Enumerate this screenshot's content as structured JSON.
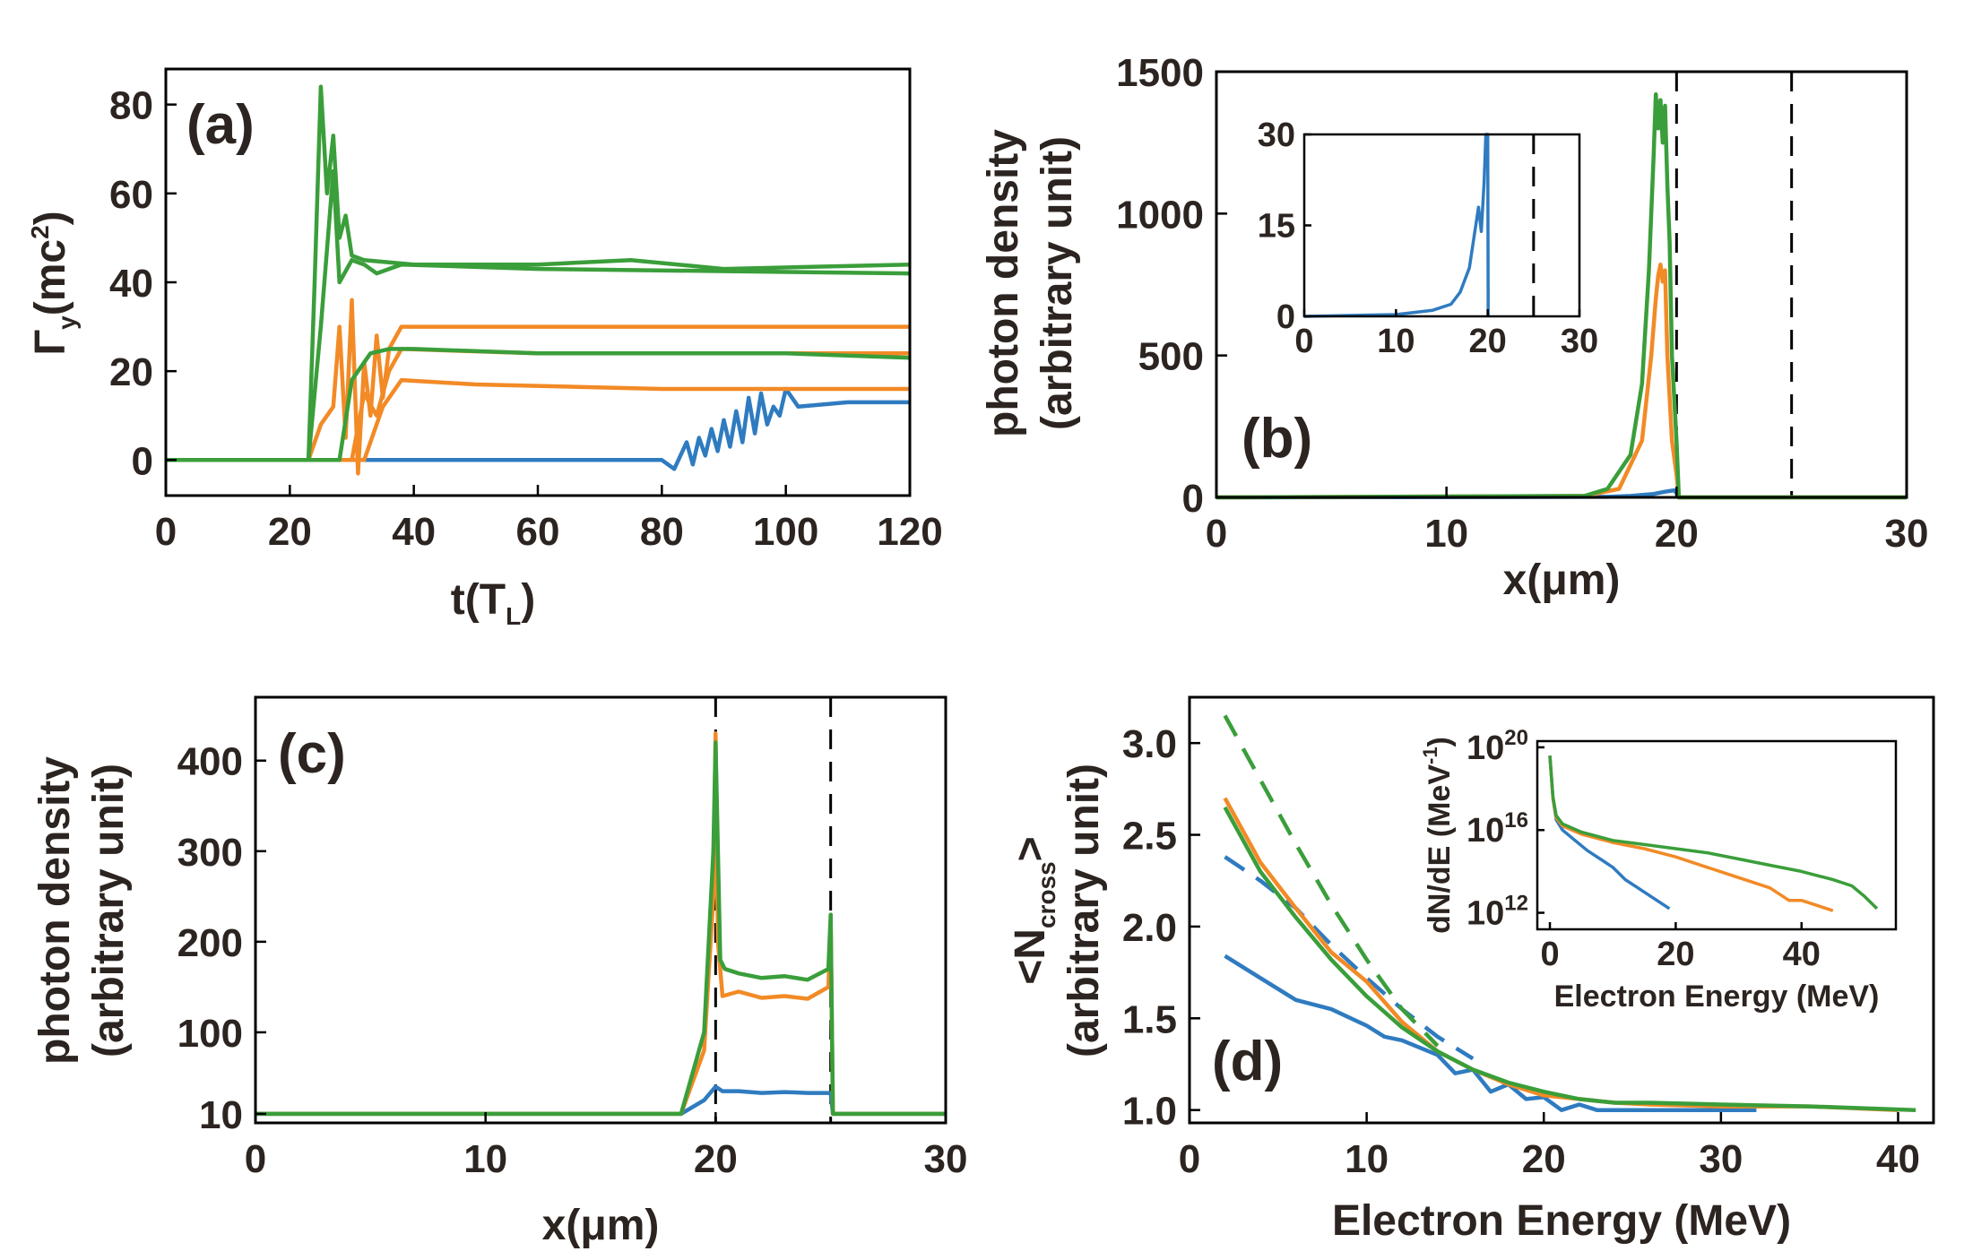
{
  "colors": {
    "blue": "#2f7bc0",
    "orange": "#f28a26",
    "green": "#3a9e3a",
    "black": "#000000"
  },
  "chart_data": [
    {
      "id": "a",
      "type": "line",
      "panel_label": "(a)",
      "xlabel": "t(T",
      "xlabel_sub": "L",
      "xlabel_end": ")",
      "ylabel": "Γ",
      "ylabel_sub": "y",
      "ylabel_mid": "(mc",
      "ylabel_sup": "2",
      "ylabel_end": ")",
      "xlim": [
        0,
        120
      ],
      "ylim": [
        -8,
        88
      ],
      "xticks": [
        0,
        20,
        40,
        60,
        80,
        100,
        120
      ],
      "yticks": [
        0,
        20,
        40,
        60,
        80
      ],
      "series": [
        {
          "color": "blue",
          "x": [
            0,
            80,
            82,
            84,
            85,
            86,
            87,
            88,
            89,
            90,
            91,
            92,
            93,
            94,
            95,
            96,
            97,
            98,
            99,
            100,
            102,
            110,
            120
          ],
          "y": [
            0,
            0,
            -2,
            4,
            -1,
            5,
            1,
            7,
            2,
            9,
            3,
            11,
            4,
            14,
            6,
            15,
            8,
            12,
            10,
            16,
            12,
            13,
            13
          ]
        },
        {
          "color": "orange",
          "x": [
            0,
            23,
            25,
            27,
            28,
            29,
            30,
            31,
            32,
            33,
            34,
            35,
            36,
            38,
            60,
            100,
            120
          ],
          "y": [
            0,
            0,
            8,
            12,
            30,
            5,
            36,
            -3,
            22,
            10,
            28,
            14,
            25,
            30,
            30,
            30,
            30
          ]
        },
        {
          "color": "orange",
          "x": [
            0,
            30,
            32,
            34,
            36,
            38,
            60,
            90,
            100,
            120
          ],
          "y": [
            0,
            0,
            15,
            10,
            20,
            25,
            24,
            24,
            24,
            24
          ]
        },
        {
          "color": "orange",
          "x": [
            0,
            32,
            35,
            38,
            50,
            80,
            120
          ],
          "y": [
            0,
            0,
            12,
            18,
            17,
            16,
            16
          ]
        },
        {
          "color": "green",
          "x": [
            0,
            23,
            24,
            25,
            26,
            27,
            28,
            29,
            30,
            32,
            40,
            60,
            75,
            90,
            120
          ],
          "y": [
            0,
            0,
            40,
            84,
            60,
            73,
            50,
            55,
            46,
            45,
            44,
            44,
            45,
            43,
            44
          ]
        },
        {
          "color": "green",
          "x": [
            0,
            23,
            25,
            27,
            28,
            30,
            32,
            34,
            36,
            38,
            60,
            120
          ],
          "y": [
            0,
            0,
            30,
            65,
            40,
            45,
            44,
            42,
            43,
            44,
            43,
            42
          ]
        },
        {
          "color": "green",
          "x": [
            0,
            28,
            30,
            33,
            36,
            40,
            60,
            100,
            120
          ],
          "y": [
            0,
            0,
            18,
            24,
            25,
            25,
            24,
            24,
            23
          ]
        }
      ]
    },
    {
      "id": "b",
      "type": "line",
      "panel_label": "(b)",
      "xlabel": "x(μm)",
      "ylabel": "photon density",
      "ylabel2": "(arbitrary unit)",
      "xlim": [
        0,
        30
      ],
      "ylim": [
        0,
        1500
      ],
      "xticks": [
        0,
        10,
        20,
        30
      ],
      "yticks": [
        0,
        500,
        1000,
        1500
      ],
      "dashed_x": [
        20,
        25
      ],
      "series": [
        {
          "color": "blue",
          "x": [
            0,
            17,
            18,
            19,
            19.5,
            19.9,
            20,
            20.1,
            30
          ],
          "y": [
            0,
            2,
            5,
            12,
            20,
            25,
            15,
            0,
            0
          ]
        },
        {
          "color": "orange",
          "x": [
            0,
            16,
            17.5,
            18.5,
            18.9,
            19.1,
            19.2,
            19.3,
            19.4,
            19.5,
            19.6,
            19.8,
            20,
            20.1,
            30
          ],
          "y": [
            0,
            5,
            30,
            200,
            500,
            700,
            780,
            820,
            760,
            800,
            500,
            200,
            80,
            0,
            0
          ]
        },
        {
          "color": "green",
          "x": [
            0,
            16,
            17,
            18,
            18.5,
            18.8,
            19.0,
            19.1,
            19.2,
            19.3,
            19.4,
            19.5,
            19.6,
            19.7,
            19.8,
            20,
            20.1,
            30
          ],
          "y": [
            0,
            5,
            30,
            150,
            400,
            800,
            1200,
            1420,
            1300,
            1400,
            1250,
            1380,
            1100,
            900,
            500,
            200,
            0,
            0
          ]
        }
      ],
      "inset": {
        "xlim": [
          0,
          30
        ],
        "ylim": [
          0,
          30
        ],
        "xticks": [
          0,
          10,
          20,
          30
        ],
        "yticks": [
          0,
          15,
          30
        ],
        "dashed_x": [
          25
        ],
        "series": [
          {
            "color": "blue",
            "x": [
              0,
              10,
              14,
              16,
              17,
              18,
              18.5,
              19,
              19.3,
              19.6,
              19.8,
              20,
              20.05
            ],
            "y": [
              0,
              0.3,
              1,
              2,
              4,
              8,
              13,
              18,
              14,
              22,
              30,
              30,
              0
            ]
          }
        ]
      }
    },
    {
      "id": "c",
      "type": "line",
      "panel_label": "(c)",
      "xlabel": "x(μm)",
      "ylabel": "photon density",
      "ylabel2": "(arbitrary unit)",
      "xlim": [
        0,
        30
      ],
      "ylim": [
        0,
        470
      ],
      "xticks": [
        0,
        10,
        20,
        30
      ],
      "yticks": [
        10,
        100,
        200,
        300,
        400
      ],
      "ytick_labels": [
        "10",
        "100",
        "200",
        "300",
        "400"
      ],
      "dashed_x": [
        20,
        25
      ],
      "series": [
        {
          "color": "blue",
          "x": [
            0,
            18.5,
            19.5,
            20,
            20.3,
            21,
            22,
            23,
            24,
            25,
            25.1,
            30
          ],
          "y": [
            10,
            10,
            25,
            40,
            35,
            35,
            33,
            34,
            33,
            33,
            10,
            10
          ]
        },
        {
          "color": "orange",
          "x": [
            0,
            18.5,
            19.5,
            19.9,
            20,
            20.1,
            20.3,
            21,
            22,
            23,
            24,
            24.9,
            25,
            25.1,
            30
          ],
          "y": [
            10,
            10,
            80,
            250,
            430,
            200,
            140,
            145,
            138,
            140,
            137,
            150,
            220,
            10,
            10
          ]
        },
        {
          "color": "green",
          "x": [
            0,
            18.5,
            19.5,
            19.9,
            20,
            20.2,
            20.4,
            21,
            22,
            23,
            24,
            24.9,
            25,
            25.1,
            30
          ],
          "y": [
            10,
            10,
            100,
            300,
            420,
            180,
            170,
            165,
            160,
            162,
            158,
            170,
            230,
            10,
            10
          ]
        }
      ]
    },
    {
      "id": "d",
      "type": "line",
      "panel_label": "(d)",
      "xlabel": "Electron Energy (MeV)",
      "ylabel": "<N",
      "ylabel_sub": "cross",
      "ylabel_end": ">",
      "ylabel2": "(arbitrary unit)",
      "xlim": [
        0,
        42
      ],
      "ylim": [
        0.93,
        3.25
      ],
      "xticks": [
        0,
        10,
        20,
        30,
        40
      ],
      "yticks": [
        1.0,
        1.5,
        2.0,
        2.5,
        3.0
      ],
      "series": [
        {
          "color": "blue",
          "dashed": true,
          "x": [
            2,
            4,
            6,
            8,
            10,
            12,
            14,
            16
          ],
          "y": [
            2.38,
            2.25,
            2.1,
            1.9,
            1.72,
            1.55,
            1.4,
            1.28
          ]
        },
        {
          "color": "green",
          "dashed": true,
          "x": [
            2,
            4,
            6,
            8,
            10,
            12,
            14
          ],
          "y": [
            3.15,
            2.8,
            2.45,
            2.12,
            1.82,
            1.55,
            1.35
          ]
        },
        {
          "color": "blue",
          "x": [
            2,
            4,
            6,
            8,
            10,
            11,
            12,
            14,
            15,
            16,
            17,
            18,
            19,
            20,
            21,
            22,
            23,
            24,
            26,
            28,
            32
          ],
          "y": [
            1.84,
            1.72,
            1.6,
            1.55,
            1.46,
            1.4,
            1.38,
            1.3,
            1.2,
            1.22,
            1.1,
            1.14,
            1.06,
            1.07,
            1.0,
            1.03,
            1.0,
            1.0,
            1.0,
            1.0,
            1.0
          ]
        },
        {
          "color": "orange",
          "x": [
            2,
            4,
            6,
            8,
            10,
            12,
            14,
            16,
            18,
            20,
            22,
            24,
            26,
            30,
            35,
            40
          ],
          "y": [
            2.7,
            2.35,
            2.1,
            1.86,
            1.7,
            1.48,
            1.32,
            1.22,
            1.14,
            1.08,
            1.06,
            1.04,
            1.03,
            1.02,
            1.02,
            1.0
          ]
        },
        {
          "color": "green",
          "x": [
            2,
            4,
            6,
            8,
            10,
            12,
            14,
            16,
            18,
            20,
            22,
            24,
            26,
            30,
            35,
            41
          ],
          "y": [
            2.65,
            2.3,
            2.05,
            1.82,
            1.62,
            1.45,
            1.32,
            1.22,
            1.15,
            1.1,
            1.06,
            1.04,
            1.04,
            1.03,
            1.02,
            1.0
          ]
        }
      ],
      "inset": {
        "xlabel": "Electron Energy (MeV)",
        "ylabel": "dN/dE (MeV",
        "ylabel_sup": "-1",
        "ylabel_end": ")",
        "xlim": [
          -2,
          55
        ],
        "ylim": [
          11.2,
          20.3
        ],
        "xticks": [
          0,
          20,
          40
        ],
        "yticks": [
          12,
          16,
          20
        ],
        "ytick_base": "10",
        "series": [
          {
            "color": "blue",
            "x": [
              0,
              0.5,
              1,
              2,
              4,
              6,
              8,
              10,
              12,
              14,
              16,
              18,
              19
            ],
            "y": [
              19.6,
              17.5,
              16.5,
              16.0,
              15.5,
              15.0,
              14.6,
              14.2,
              13.6,
              13.2,
              12.8,
              12.4,
              12.2
            ]
          },
          {
            "color": "orange",
            "x": [
              0,
              0.5,
              1,
              2,
              5,
              10,
              15,
              20,
              25,
              30,
              35,
              38,
              40,
              43,
              45
            ],
            "y": [
              19.6,
              17.5,
              16.6,
              16.2,
              15.8,
              15.4,
              15.1,
              14.7,
              14.2,
              13.7,
              13.2,
              12.6,
              12.6,
              12.3,
              12.1
            ]
          },
          {
            "color": "green",
            "x": [
              0,
              0.5,
              1,
              2,
              5,
              10,
              15,
              20,
              25,
              30,
              35,
              40,
              45,
              48,
              50,
              52
            ],
            "y": [
              19.6,
              17.6,
              16.7,
              16.3,
              15.9,
              15.5,
              15.3,
              15.1,
              14.9,
              14.6,
              14.3,
              14.0,
              13.6,
              13.3,
              12.8,
              12.2
            ]
          }
        ]
      }
    }
  ]
}
